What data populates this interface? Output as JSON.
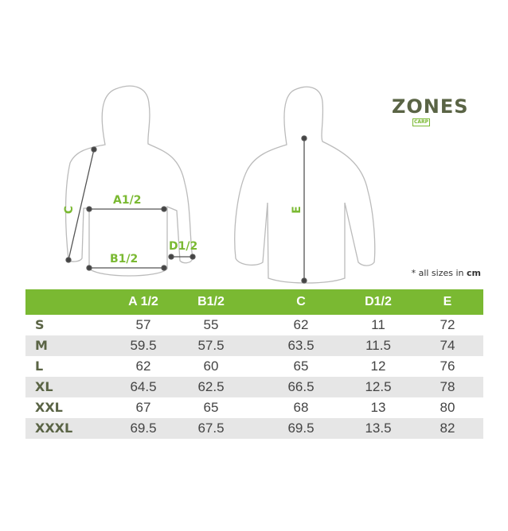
{
  "logo": {
    "text": "ZONES",
    "sub": "CARP"
  },
  "diagram": {
    "labels": {
      "a": "A1/2",
      "b": "B1/2",
      "c": "C",
      "d": "D1/2",
      "e": "E"
    }
  },
  "note": {
    "prefix": "* all sizes in ",
    "unit": "cm"
  },
  "colors": {
    "accent": "#7ab932",
    "brand": "#5a6445",
    "row_alt": "#e6e6e6"
  },
  "table": {
    "headers": [
      "",
      "A 1/2",
      "B1/2",
      "C",
      "D1/2",
      "E"
    ],
    "rows": [
      {
        "size": "S",
        "values": [
          "57",
          "55",
          "62",
          "11",
          "72"
        ]
      },
      {
        "size": "M",
        "values": [
          "59.5",
          "57.5",
          "63.5",
          "11.5",
          "74"
        ]
      },
      {
        "size": "L",
        "values": [
          "62",
          "60",
          "65",
          "12",
          "76"
        ]
      },
      {
        "size": "XL",
        "values": [
          "64.5",
          "62.5",
          "66.5",
          "12.5",
          "78"
        ]
      },
      {
        "size": "XXL",
        "values": [
          "67",
          "65",
          "68",
          "13",
          "80"
        ]
      },
      {
        "size": "XXXL",
        "values": [
          "69.5",
          "67.5",
          "69.5",
          "13.5",
          "82"
        ]
      }
    ]
  }
}
